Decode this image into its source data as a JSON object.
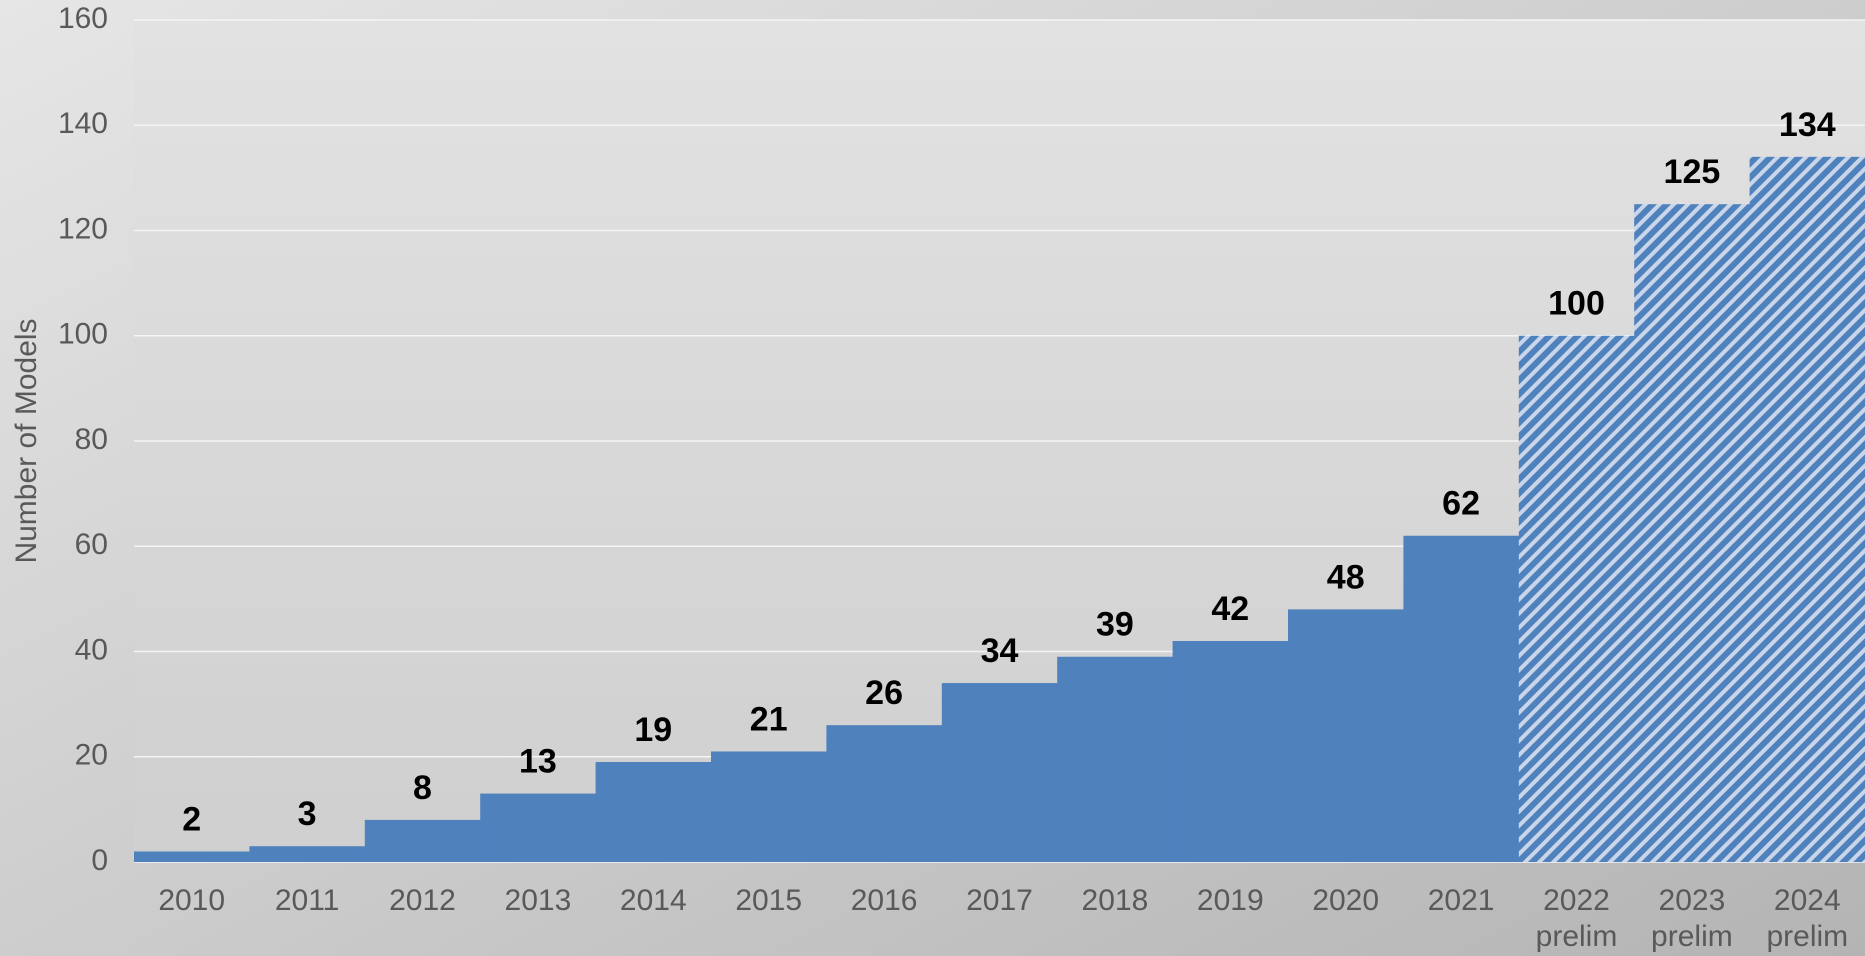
{
  "chart_data": {
    "type": "bar",
    "y_label": "Number of Models",
    "categories": [
      "2010",
      "2011",
      "2012",
      "2013",
      "2014",
      "2015",
      "2016",
      "2017",
      "2018",
      "2019",
      "2020",
      "2021",
      "2022 prelim",
      "2023 prelim",
      "2024 prelim"
    ],
    "values": [
      2,
      3,
      8,
      13,
      19,
      21,
      26,
      34,
      39,
      42,
      48,
      62,
      100,
      125,
      134
    ],
    "hatched": [
      false,
      false,
      false,
      false,
      false,
      false,
      false,
      false,
      false,
      false,
      false,
      false,
      true,
      true,
      true
    ],
    "color": "#4f81bd",
    "ylim": [
      0,
      160
    ],
    "yticks": [
      0,
      20,
      40,
      60,
      80,
      100,
      120,
      140,
      160
    ],
    "grid": true
  }
}
